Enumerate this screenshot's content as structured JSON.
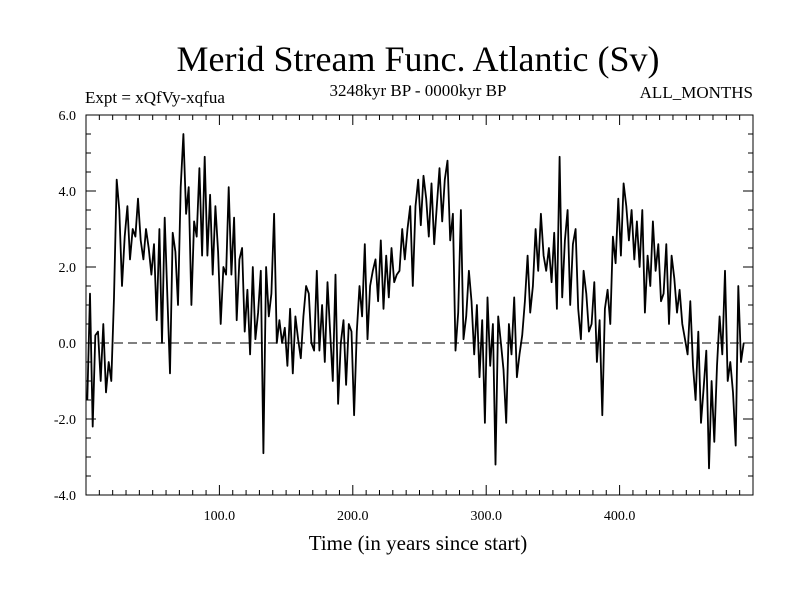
{
  "chart_data": {
    "type": "line",
    "title": "Merid Stream Func. Atlantic (Sv)",
    "subtitle_left": "Expt = xQfVy-xqfua",
    "subtitle_center": "3248kyr BP - 0000kyr BP",
    "subtitle_right": "ALL_MONTHS",
    "xlabel": "Time (in years since start)",
    "ylabel": "",
    "xlim": [
      0,
      500
    ],
    "ylim": [
      -4,
      6
    ],
    "x_ticks": [
      100,
      200,
      300,
      400
    ],
    "x_tick_labels": [
      "100.0",
      "200.0",
      "300.0",
      "400.0"
    ],
    "y_ticks": [
      -4,
      -2,
      0,
      2,
      4,
      6
    ],
    "y_tick_labels": [
      "-4.0",
      "-2.0",
      "0.0",
      "2.0",
      "4.0",
      "6.0"
    ],
    "reference_line": {
      "y": 0,
      "style": "dashed"
    },
    "series": [
      {
        "name": "Merid Stream Func. Atlantic",
        "x_start": 1,
        "x_step": 2,
        "values": [
          -1.5,
          1.3,
          -2.2,
          0.2,
          0.3,
          -1.0,
          0.5,
          -1.3,
          -0.5,
          -1.0,
          1.2,
          4.3,
          3.5,
          1.5,
          2.8,
          3.6,
          2.2,
          3.0,
          2.8,
          3.8,
          2.7,
          2.2,
          3.0,
          2.5,
          1.8,
          2.6,
          0.6,
          3.0,
          0.0,
          3.3,
          1.2,
          -0.8,
          2.9,
          2.4,
          1.0,
          4.1,
          5.5,
          3.4,
          4.1,
          1.0,
          3.2,
          2.8,
          4.6,
          2.3,
          4.9,
          2.3,
          3.9,
          1.8,
          3.6,
          2.4,
          0.5,
          2.0,
          1.8,
          4.1,
          1.8,
          3.3,
          0.6,
          2.2,
          2.5,
          0.3,
          1.4,
          -0.3,
          2.0,
          0.1,
          0.8,
          1.9,
          -2.9,
          2.0,
          0.7,
          1.3,
          3.4,
          0.0,
          0.6,
          0.0,
          0.4,
          -0.6,
          0.9,
          -0.8,
          0.7,
          0.1,
          -0.4,
          0.7,
          1.5,
          1.3,
          0.0,
          -0.2,
          1.9,
          -0.2,
          1.0,
          -0.5,
          1.6,
          0.3,
          -1.0,
          1.8,
          -1.6,
          0.0,
          0.6,
          -1.1,
          0.5,
          0.3,
          -1.9,
          0.3,
          1.5,
          0.7,
          2.6,
          0.1,
          1.5,
          1.9,
          2.2,
          1.1,
          2.7,
          0.9,
          2.3,
          1.2,
          2.5,
          1.6,
          1.8,
          1.9,
          3.0,
          2.2,
          3.0,
          3.6,
          1.5,
          3.6,
          4.3,
          3.1,
          4.4,
          3.8,
          2.8,
          4.2,
          2.6,
          3.6,
          4.6,
          3.2,
          4.3,
          4.8,
          2.7,
          3.4,
          -0.2,
          0.8,
          3.5,
          0.1,
          0.7,
          1.9,
          1.1,
          -0.3,
          1.0,
          -0.9,
          0.6,
          -2.1,
          1.2,
          -0.6,
          0.5,
          -3.2,
          0.7,
          0.0,
          -0.7,
          -2.1,
          0.5,
          -0.3,
          1.2,
          -0.9,
          -0.3,
          0.2,
          1.1,
          2.3,
          0.8,
          1.5,
          3.0,
          1.9,
          3.4,
          2.3,
          1.9,
          2.5,
          1.6,
          2.9,
          0.9,
          4.9,
          1.2,
          2.7,
          3.5,
          1.0,
          2.6,
          3.0,
          0.9,
          0.1,
          1.9,
          1.3,
          0.3,
          0.5,
          1.6,
          -0.5,
          0.6,
          -1.9,
          0.9,
          1.4,
          0.5,
          2.8,
          2.1,
          3.8,
          2.3,
          4.2,
          3.6,
          2.7,
          3.5,
          2.2,
          3.2,
          2.0,
          3.5,
          0.8,
          2.3,
          1.5,
          3.2,
          1.9,
          2.6,
          1.1,
          1.3,
          2.6,
          0.5,
          2.3,
          1.7,
          0.8,
          1.4,
          0.5,
          0.1,
          -0.3,
          1.1,
          -0.6,
          -1.5,
          0.3,
          -2.1,
          -1.2,
          -0.2,
          -3.3,
          -1.0,
          -2.6,
          -0.6,
          0.7,
          -0.3,
          1.9,
          -1.0,
          -0.5,
          -1.3,
          -2.7,
          1.5,
          -0.5,
          0.0
        ]
      }
    ]
  }
}
